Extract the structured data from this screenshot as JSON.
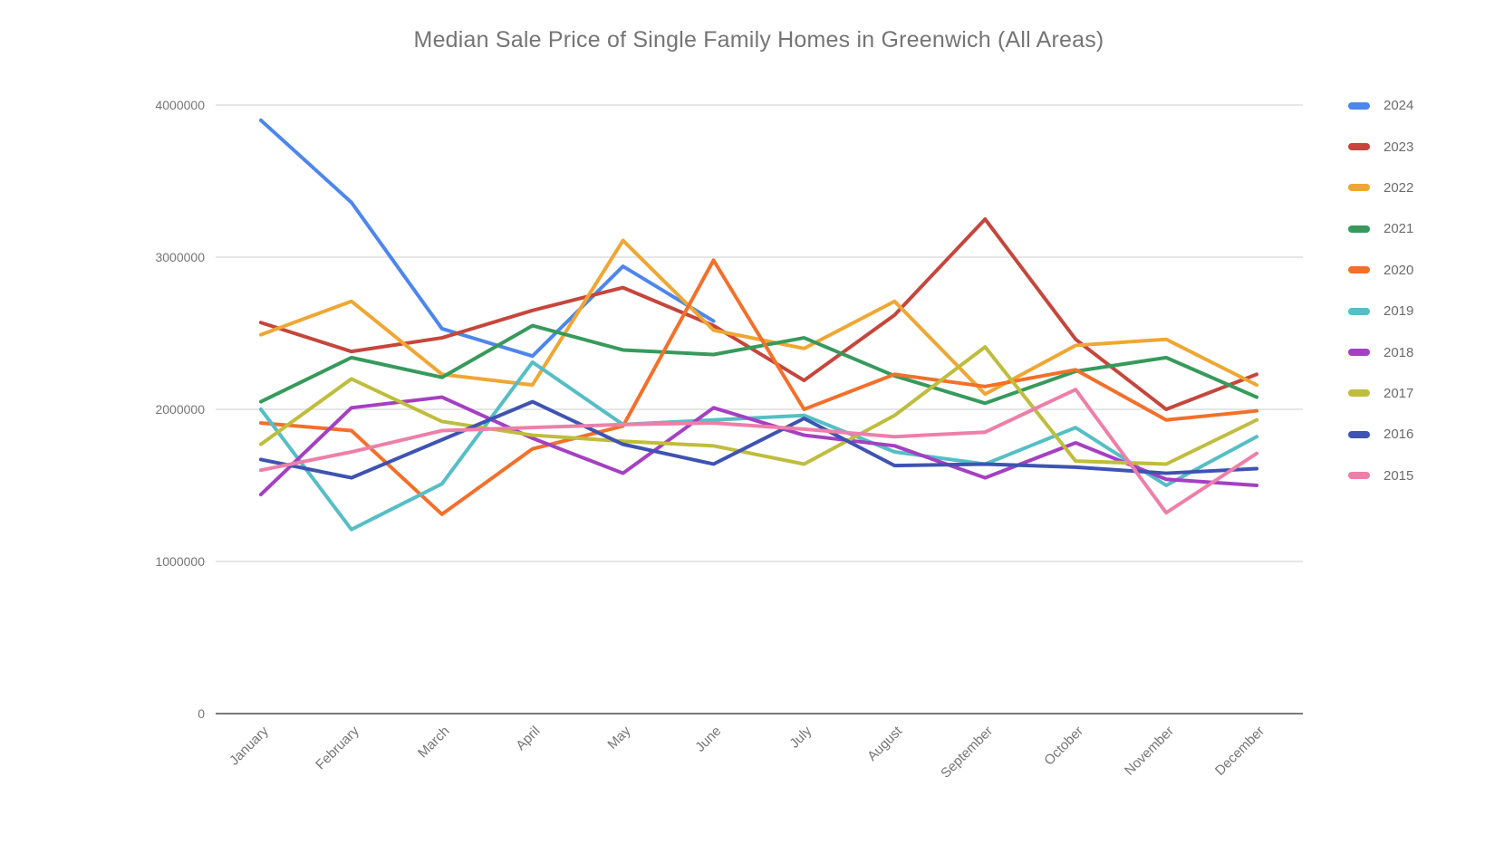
{
  "chart_data": {
    "type": "line",
    "title": "Median Sale Price of Single Family Homes in Greenwich (All Areas)",
    "categories": [
      "January",
      "February",
      "March",
      "April",
      "May",
      "June",
      "July",
      "August",
      "September",
      "October",
      "November",
      "December"
    ],
    "series": [
      {
        "name": "2024",
        "color": "#4d86ec",
        "values": [
          3900000,
          3360000,
          2530000,
          2350000,
          2940000,
          2580000,
          null,
          null,
          null,
          null,
          null,
          null
        ]
      },
      {
        "name": "2023",
        "color": "#c5463c",
        "values": [
          2570000,
          2380000,
          2470000,
          2650000,
          2800000,
          2550000,
          2190000,
          2620000,
          3250000,
          2460000,
          2000000,
          2230000
        ]
      },
      {
        "name": "2022",
        "color": "#efa733",
        "values": [
          2490000,
          2710000,
          2230000,
          2160000,
          3110000,
          2520000,
          2400000,
          2710000,
          2100000,
          2420000,
          2460000,
          2160000
        ]
      },
      {
        "name": "2021",
        "color": "#379a5c",
        "values": [
          2050000,
          2340000,
          2210000,
          2550000,
          2390000,
          2360000,
          2470000,
          2220000,
          2040000,
          2250000,
          2340000,
          2080000
        ]
      },
      {
        "name": "2020",
        "color": "#f3702a",
        "values": [
          1910000,
          1860000,
          1310000,
          1740000,
          1890000,
          2980000,
          2000000,
          2230000,
          2150000,
          2260000,
          1930000,
          1990000
        ]
      },
      {
        "name": "2019",
        "color": "#55bec6",
        "values": [
          2000000,
          1210000,
          1510000,
          2310000,
          1900000,
          1930000,
          1960000,
          1720000,
          1640000,
          1880000,
          1500000,
          1820000
        ]
      },
      {
        "name": "2018",
        "color": "#a440c2",
        "values": [
          1440000,
          2010000,
          2080000,
          1810000,
          1580000,
          2010000,
          1830000,
          1760000,
          1550000,
          1780000,
          1540000,
          1500000
        ]
      },
      {
        "name": "2017",
        "color": "#bfbd3d",
        "values": [
          1770000,
          2200000,
          1920000,
          1830000,
          1790000,
          1760000,
          1640000,
          1960000,
          2410000,
          1660000,
          1640000,
          1930000
        ]
      },
      {
        "name": "2016",
        "color": "#3e53b2",
        "values": [
          1670000,
          1550000,
          1800000,
          2050000,
          1770000,
          1640000,
          1940000,
          1630000,
          1640000,
          1620000,
          1580000,
          1610000
        ]
      },
      {
        "name": "2015",
        "color": "#ee7fa8",
        "values": [
          1600000,
          1720000,
          1860000,
          1880000,
          1900000,
          1910000,
          1870000,
          1820000,
          1850000,
          2130000,
          1320000,
          1710000
        ]
      }
    ],
    "ylim": [
      0,
      4000000
    ],
    "yticks": [
      0,
      1000000,
      2000000,
      3000000,
      4000000
    ],
    "grid": true,
    "legend_position": "right",
    "style": {
      "grid_color": "#e6e6e6",
      "axis_line_color": "#7a7a7a",
      "tick_label_color": "#757575"
    }
  }
}
